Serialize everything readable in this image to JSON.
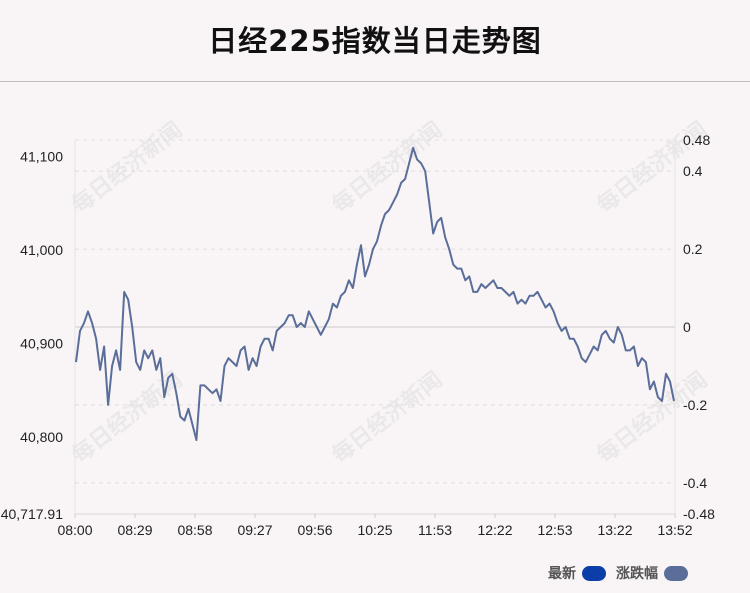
{
  "title": "日经225指数当日走势图",
  "legend": [
    {
      "label": "最新",
      "color": "#0b3ea8"
    },
    {
      "label": "涨跌幅",
      "color": "#5a6e99"
    }
  ],
  "watermark": "每日经济新闻",
  "chart_data": {
    "type": "line",
    "title": "日经225指数当日走势图",
    "x_ticks": [
      "08:00",
      "08:29",
      "08:58",
      "09:27",
      "09:56",
      "10:25",
      "11:53",
      "12:22",
      "12:53",
      "13:22",
      "13:52"
    ],
    "y_left": {
      "ticks": [
        "41,100",
        "41,000",
        "40,900",
        "40,800",
        "40,717.91"
      ],
      "tick_values": [
        41100,
        41000,
        40900,
        40800,
        40717.91
      ],
      "range": [
        40717.91,
        41117.36
      ]
    },
    "y_right": {
      "ticks": [
        "0.48",
        "0.4",
        "0.2",
        "0",
        "-0.2",
        "-0.4",
        "-0.48"
      ],
      "tick_values": [
        0.48,
        0.4,
        0.2,
        0,
        -0.2,
        -0.4,
        -0.48
      ],
      "range": [
        -0.48,
        0.48
      ]
    },
    "grid": true,
    "legend_position": "bottom-right",
    "series": [
      {
        "name": "涨跌幅",
        "color": "#5a6e99",
        "x_index": [
          0,
          1,
          2,
          3,
          4,
          5,
          6,
          7,
          8,
          9,
          10,
          11,
          12,
          13,
          14,
          15,
          16,
          17,
          18,
          19,
          20,
          21,
          22,
          23,
          24,
          25,
          26,
          27,
          28,
          29,
          30,
          31,
          32,
          33,
          34,
          35,
          36,
          37,
          38,
          39,
          40,
          41,
          42,
          43,
          44,
          45,
          46,
          47,
          48,
          49,
          50,
          51,
          52,
          53,
          54,
          55,
          56,
          57,
          58,
          59,
          60,
          61,
          62,
          63,
          64,
          65,
          66,
          67,
          68,
          69,
          70,
          71,
          72,
          73,
          74,
          75,
          76,
          77,
          78,
          79,
          80,
          81,
          82,
          83,
          84,
          85,
          86,
          87,
          88,
          89,
          90,
          91,
          92,
          93,
          94,
          95,
          96,
          97,
          98,
          99,
          100,
          101,
          102,
          103,
          104,
          105,
          106,
          107,
          108,
          109,
          110,
          111,
          112,
          113,
          114,
          115,
          116,
          117,
          118,
          119,
          120,
          121,
          122,
          123,
          124,
          125,
          126,
          127,
          128,
          129,
          130,
          131,
          132,
          133,
          134,
          135,
          136,
          137,
          138,
          139,
          140,
          141,
          142,
          143,
          144,
          145,
          146,
          147,
          148,
          149
        ],
        "values": [
          -0.09,
          -0.01,
          0.01,
          0.04,
          0.01,
          -0.03,
          -0.11,
          -0.05,
          -0.2,
          -0.1,
          -0.06,
          -0.11,
          0.09,
          0.07,
          0.0,
          -0.09,
          -0.11,
          -0.06,
          -0.08,
          -0.06,
          -0.11,
          -0.08,
          -0.18,
          -0.13,
          -0.12,
          -0.17,
          -0.23,
          -0.24,
          -0.21,
          -0.25,
          -0.29,
          -0.15,
          -0.15,
          -0.16,
          -0.17,
          -0.16,
          -0.19,
          -0.1,
          -0.08,
          -0.09,
          -0.1,
          -0.06,
          -0.05,
          -0.11,
          -0.08,
          -0.1,
          -0.05,
          -0.03,
          -0.03,
          -0.06,
          -0.01,
          0.0,
          0.01,
          0.03,
          0.03,
          0.0,
          0.01,
          0.0,
          0.04,
          0.02,
          0.0,
          -0.02,
          0.0,
          0.02,
          0.06,
          0.05,
          0.08,
          0.09,
          0.12,
          0.1,
          0.16,
          0.21,
          0.13,
          0.16,
          0.2,
          0.22,
          0.26,
          0.29,
          0.3,
          0.32,
          0.34,
          0.37,
          0.38,
          0.42,
          0.46,
          0.43,
          0.42,
          0.4,
          0.32,
          0.24,
          0.27,
          0.28,
          0.23,
          0.2,
          0.16,
          0.15,
          0.15,
          0.12,
          0.13,
          0.09,
          0.09,
          0.11,
          0.1,
          0.11,
          0.12,
          0.1,
          0.1,
          0.09,
          0.08,
          0.09,
          0.06,
          0.07,
          0.06,
          0.08,
          0.08,
          0.09,
          0.07,
          0.05,
          0.06,
          0.04,
          0.01,
          -0.01,
          0.0,
          -0.03,
          -0.03,
          -0.05,
          -0.08,
          -0.09,
          -0.07,
          -0.05,
          -0.06,
          -0.02,
          -0.01,
          -0.03,
          -0.04,
          0.0,
          -0.02,
          -0.06,
          -0.06,
          -0.05,
          -0.1,
          -0.08,
          -0.09,
          -0.16,
          -0.14,
          -0.18,
          -0.19,
          -0.12,
          -0.14,
          -0.19
        ]
      }
    ]
  }
}
